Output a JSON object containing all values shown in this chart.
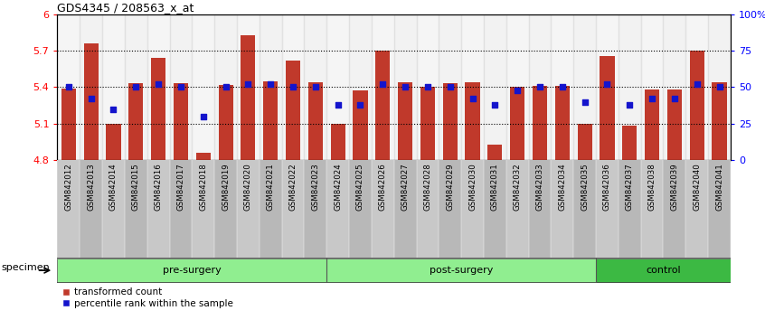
{
  "title": "GDS4345 / 208563_x_at",
  "samples": [
    "GSM842012",
    "GSM842013",
    "GSM842014",
    "GSM842015",
    "GSM842016",
    "GSM842017",
    "GSM842018",
    "GSM842019",
    "GSM842020",
    "GSM842021",
    "GSM842022",
    "GSM842023",
    "GSM842024",
    "GSM842025",
    "GSM842026",
    "GSM842027",
    "GSM842028",
    "GSM842029",
    "GSM842030",
    "GSM842031",
    "GSM842032",
    "GSM842033",
    "GSM842034",
    "GSM842035",
    "GSM842036",
    "GSM842037",
    "GSM842038",
    "GSM842039",
    "GSM842040",
    "GSM842041"
  ],
  "red_values": [
    5.39,
    5.76,
    5.1,
    5.43,
    5.64,
    5.43,
    4.86,
    5.42,
    5.83,
    5.45,
    5.62,
    5.44,
    5.1,
    5.37,
    5.7,
    5.44,
    5.4,
    5.43,
    5.44,
    4.93,
    5.4,
    5.41,
    5.41,
    5.1,
    5.66,
    5.08,
    5.38,
    5.38,
    5.7,
    5.44
  ],
  "blue_values": [
    50,
    42,
    35,
    50,
    52,
    50,
    30,
    50,
    52,
    52,
    50,
    50,
    38,
    38,
    52,
    50,
    50,
    50,
    42,
    38,
    48,
    50,
    50,
    40,
    52,
    38,
    42,
    42,
    52,
    50
  ],
  "ylim_left": [
    4.8,
    6.0
  ],
  "ylim_right": [
    0,
    100
  ],
  "yticks_left": [
    4.8,
    5.1,
    5.4,
    5.7,
    6.0
  ],
  "yticks_right": [
    0,
    25,
    50,
    75,
    100
  ],
  "ytick_labels_left": [
    "4.8",
    "5.1",
    "5.4",
    "5.7",
    "6"
  ],
  "ytick_labels_right": [
    "0",
    "25",
    "50",
    "75",
    "100%"
  ],
  "hlines": [
    5.1,
    5.4,
    5.7
  ],
  "bar_color": "#C0392B",
  "blue_color": "#1414CC",
  "bar_width": 0.65,
  "bg_color": "#FFFFFF",
  "legend_red_label": "transformed count",
  "legend_blue_label": "percentile rank within the sample",
  "specimen_label": "specimen",
  "group_ranges": [
    [
      0,
      11,
      "pre-surgery",
      "#90EE90"
    ],
    [
      12,
      23,
      "post-surgery",
      "#90EE90"
    ],
    [
      24,
      29,
      "control",
      "#3CB943"
    ]
  ],
  "xticklabel_band_colors": [
    "#C8C8C8",
    "#B8B8B8"
  ]
}
